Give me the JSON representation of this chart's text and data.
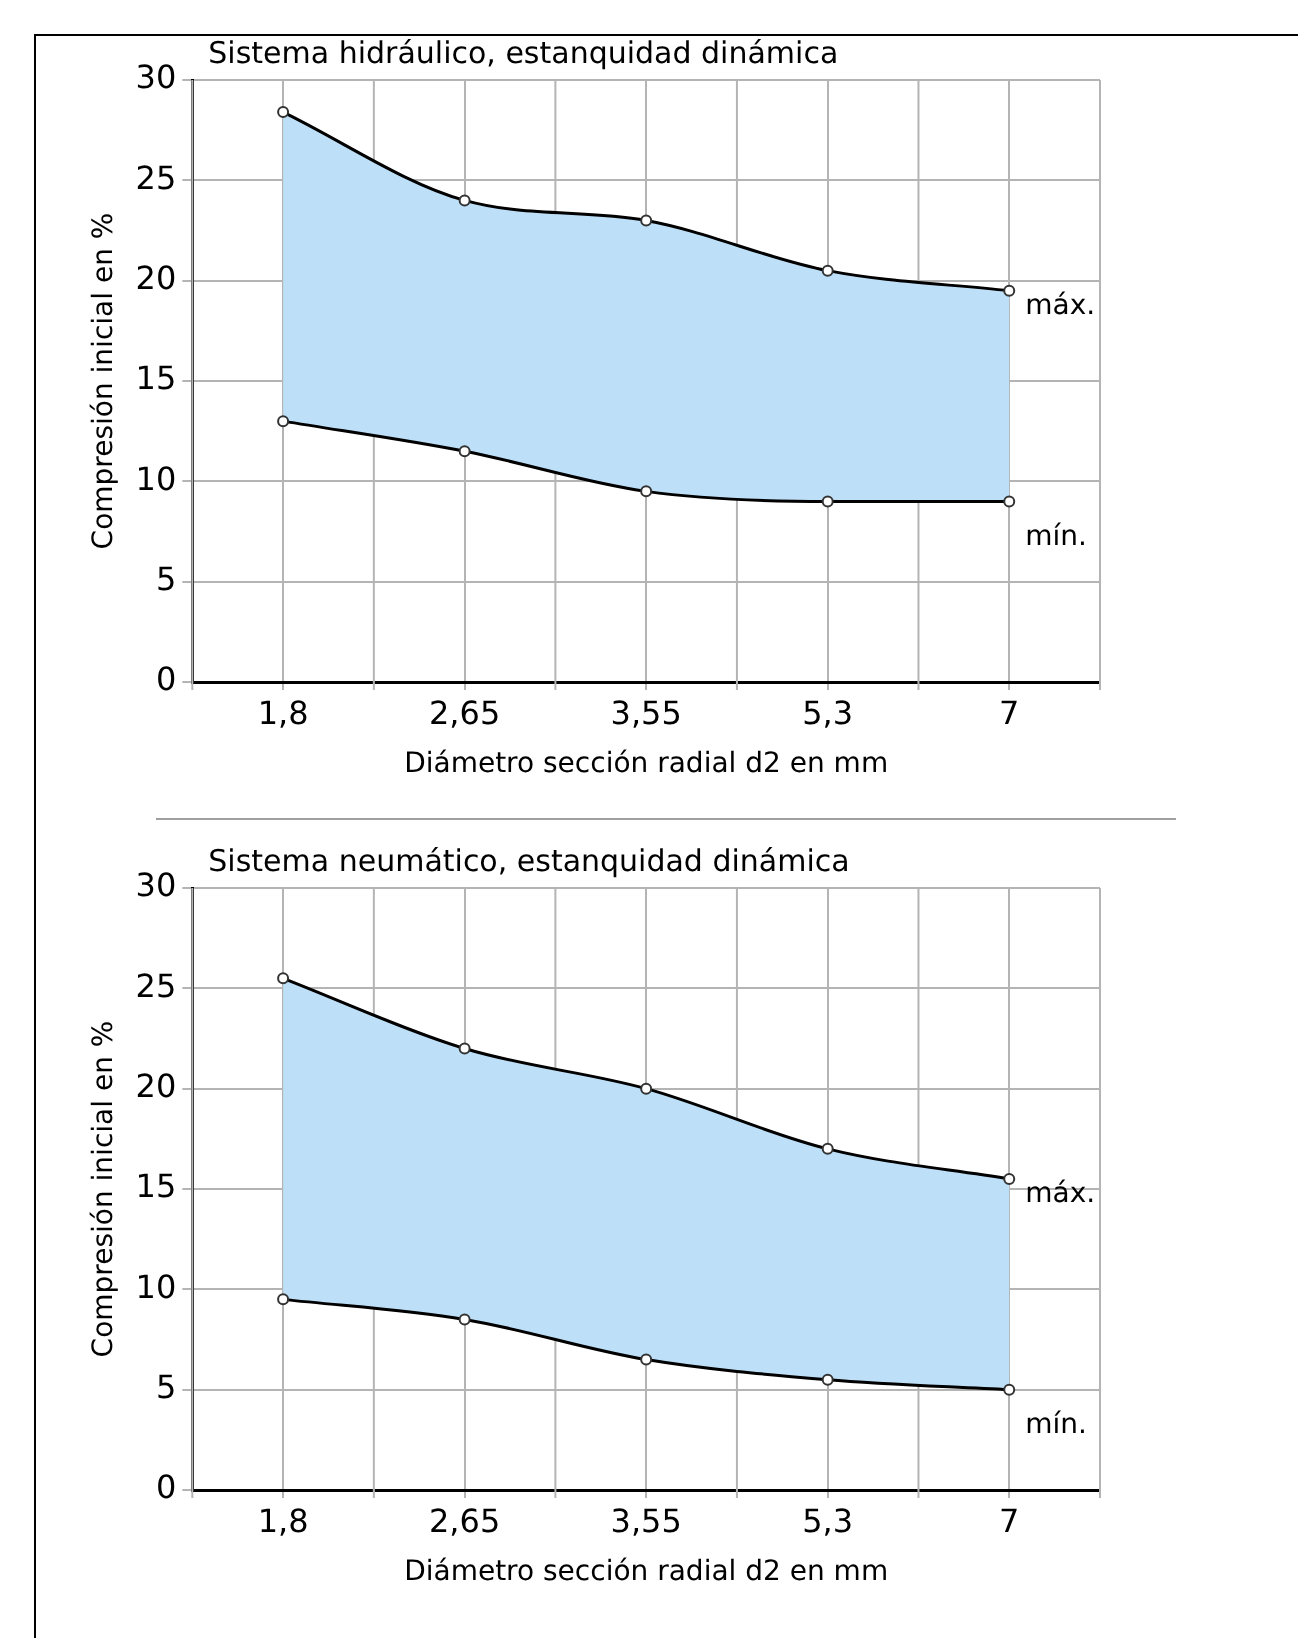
{
  "chart_data": [
    {
      "type": "area",
      "title": "Sistema hidráulico, estanquidad dinámica",
      "xlabel": "Diámetro sección radial d2 en mm",
      "ylabel": "Compresión inicial en %",
      "categories": [
        "1,8",
        "2,65",
        "3,55",
        "5,3",
        "7"
      ],
      "ylim": [
        0,
        30
      ],
      "yticks": [
        0,
        5,
        10,
        15,
        20,
        25,
        30
      ],
      "grid": true,
      "legend": false,
      "marker": "circle",
      "series": [
        {
          "name": "mín.",
          "type": "line",
          "color": "#000000",
          "values": [
            13,
            11.5,
            9.5,
            9,
            9
          ]
        },
        {
          "name": "máx.",
          "color": "#bde0f8",
          "values": [
            28.4,
            24,
            23,
            20.5,
            19.5
          ]
        }
      ]
    },
    {
      "type": "area",
      "title": "Sistema neumático, estanquidad dinámica",
      "xlabel": "Diámetro sección radial d2 en mm",
      "ylabel": "Compresión inicial en %",
      "categories": [
        "1,8",
        "2,65",
        "3,55",
        "5,3",
        "7"
      ],
      "ylim": [
        0,
        30
      ],
      "yticks": [
        0,
        5,
        10,
        15,
        20,
        25,
        30
      ],
      "grid": true,
      "legend": false,
      "marker": "circle",
      "series": [
        {
          "name": "mín.",
          "type": "line",
          "color": "#000000",
          "values": [
            9.5,
            8.5,
            6.5,
            5.5,
            5
          ]
        },
        {
          "name": "máx.",
          "color": "#bde0f8",
          "values": [
            25.5,
            22,
            20,
            17,
            15.5
          ]
        }
      ]
    }
  ]
}
